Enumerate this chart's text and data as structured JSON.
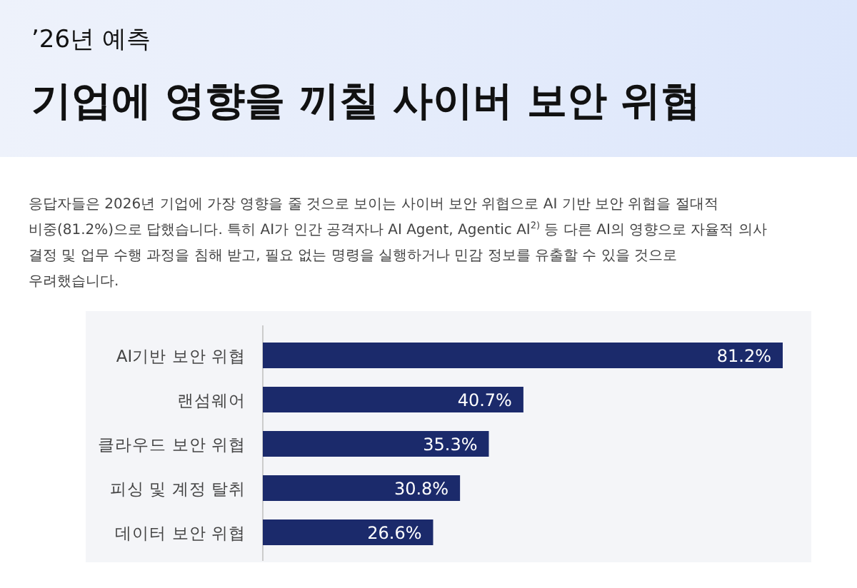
{
  "chart_data": {
    "type": "bar",
    "orientation": "horizontal",
    "subtitle": "’26년 예측",
    "title": "기업에 영향을 끼칠 사이버 보안 위협",
    "annotations": [
      "응답자들은 2026년 기업에 가장 영향을 줄 것으로 보이는 사이버 보안 위협으로 AI 기반 보안 위협을 절대적",
      "비중(81.2%)으로 답했습니다. 특히 AI가 인간 공격자나 AI Agent, Agentic AI$^{2)}$ 등 다른 AI의 영향으로 자율적 의사",
      "결정 및 업무 수행 과정을 침해 받고, 필요 없는 명령을 실행하거나 민감 정보를 유출할 수 있을 것으로",
      "우려했습니다."
    ],
    "categories": [
      "AI기반 보안 위협",
      "랜섬웨어",
      "클라우드 보안 위협",
      "피싱 및 계정 탈취",
      "데이터 보안 위협"
    ],
    "values": [
      81.2,
      40.7,
      35.3,
      30.8,
      26.6
    ],
    "value_labels": [
      "81.2%",
      "40.7%",
      "35.3%",
      "30.8%",
      "26.6%"
    ],
    "color": "#1b2a6b",
    "xlim": [
      0,
      81.2
    ],
    "tick_labels": "y"
  }
}
